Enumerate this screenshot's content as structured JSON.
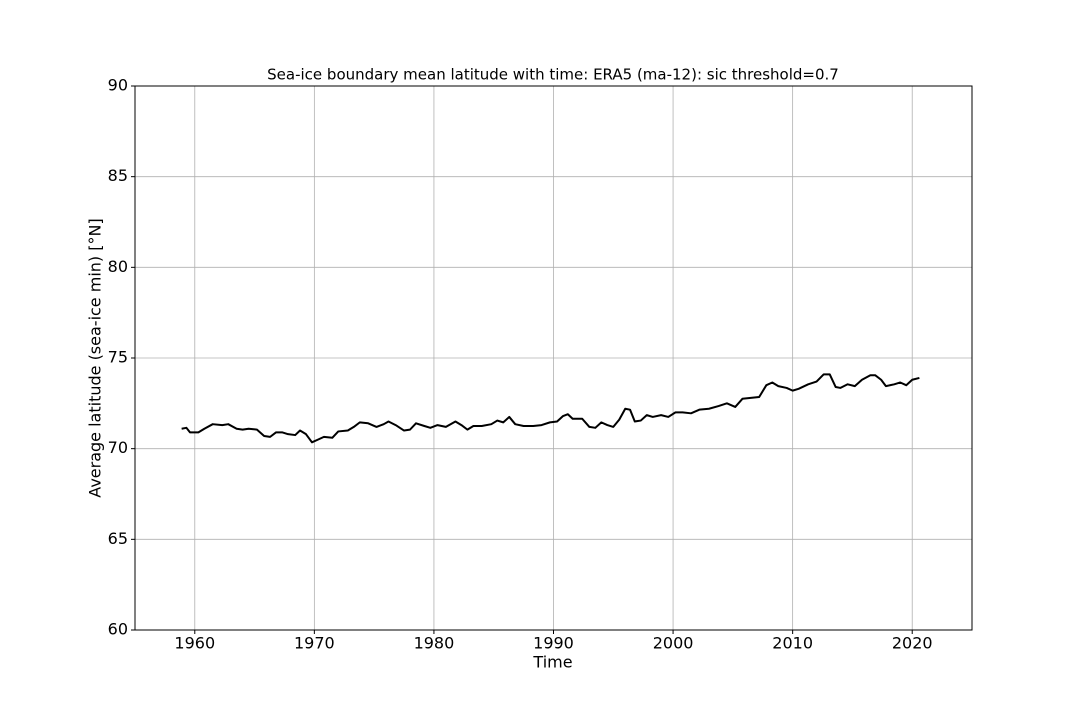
{
  "chart_data": {
    "type": "line",
    "title": "Sea-ice boundary mean latitude with time: ERA5 (ma-12): sic threshold=0.7",
    "xlabel": "Time",
    "ylabel": "Average latitude (sea-ice min) [°N]",
    "xlim": [
      1955,
      2025
    ],
    "ylim": [
      60,
      90
    ],
    "xticks": [
      1960,
      1970,
      1980,
      1990,
      2000,
      2010,
      2020
    ],
    "yticks": [
      60,
      65,
      70,
      75,
      80,
      85,
      90
    ],
    "grid": true,
    "x": [
      1958.9,
      1959.3,
      1959.6,
      1960.3,
      1960.8,
      1961.5,
      1962.3,
      1962.8,
      1963.5,
      1964,
      1964.5,
      1965.2,
      1965.8,
      1966.3,
      1966.8,
      1967.3,
      1967.8,
      1968.4,
      1968.8,
      1969.3,
      1969.8,
      1970.3,
      1970.8,
      1971.5,
      1972,
      1972.8,
      1973.3,
      1973.8,
      1974.5,
      1975.2,
      1975.8,
      1976.2,
      1976.8,
      1977.5,
      1978,
      1978.5,
      1979.2,
      1979.7,
      1980.3,
      1981,
      1981.8,
      1982.3,
      1982.8,
      1983.3,
      1984,
      1984.8,
      1985.3,
      1985.8,
      1986.3,
      1986.8,
      1987.5,
      1988.3,
      1989,
      1989.7,
      1990.3,
      1990.8,
      1991.2,
      1991.6,
      1992.4,
      1993,
      1993.5,
      1994,
      1994.5,
      1995,
      1995.5,
      1996,
      1996.4,
      1996.8,
      1997.3,
      1997.8,
      1998.3,
      1999,
      1999.6,
      2000.2,
      2000.8,
      2001.5,
      2002.2,
      2003,
      2003.8,
      2004.5,
      2005.2,
      2005.8,
      2006.5,
      2007.2,
      2007.8,
      2008.3,
      2008.8,
      2009.5,
      2010,
      2010.5,
      2011.3,
      2012,
      2012.6,
      2013.1,
      2013.6,
      2014,
      2014.6,
      2015.2,
      2015.8,
      2016.5,
      2016.9,
      2017.4,
      2017.8,
      2018.5,
      2019,
      2019.5,
      2020,
      2020.6
    ],
    "series": [
      {
        "color": "#000000",
        "values": [
          71.1,
          71.15,
          70.9,
          70.9,
          71.1,
          71.35,
          71.3,
          71.35,
          71.1,
          71.05,
          71.1,
          71.05,
          70.7,
          70.65,
          70.9,
          70.9,
          70.8,
          70.75,
          71.0,
          70.8,
          70.35,
          70.5,
          70.65,
          70.6,
          70.95,
          71.0,
          71.2,
          71.45,
          71.4,
          71.2,
          71.35,
          71.5,
          71.3,
          71.0,
          71.05,
          71.4,
          71.25,
          71.15,
          71.3,
          71.2,
          71.5,
          71.3,
          71.05,
          71.25,
          71.25,
          71.35,
          71.55,
          71.45,
          71.75,
          71.35,
          71.25,
          71.25,
          71.3,
          71.45,
          71.5,
          71.8,
          71.9,
          71.65,
          71.65,
          71.2,
          71.15,
          71.45,
          71.3,
          71.2,
          71.6,
          72.2,
          72.15,
          71.5,
          71.55,
          71.85,
          71.75,
          71.85,
          71.75,
          72.0,
          72.0,
          71.95,
          72.15,
          72.2,
          72.35,
          72.5,
          72.3,
          72.75,
          72.8,
          72.85,
          73.5,
          73.65,
          73.45,
          73.35,
          73.2,
          73.3,
          73.55,
          73.7,
          74.1,
          74.1,
          73.4,
          73.35,
          73.55,
          73.45,
          73.8,
          74.05,
          74.05,
          73.8,
          73.45,
          73.55,
          73.65,
          73.5,
          73.8,
          73.9
        ]
      }
    ]
  }
}
